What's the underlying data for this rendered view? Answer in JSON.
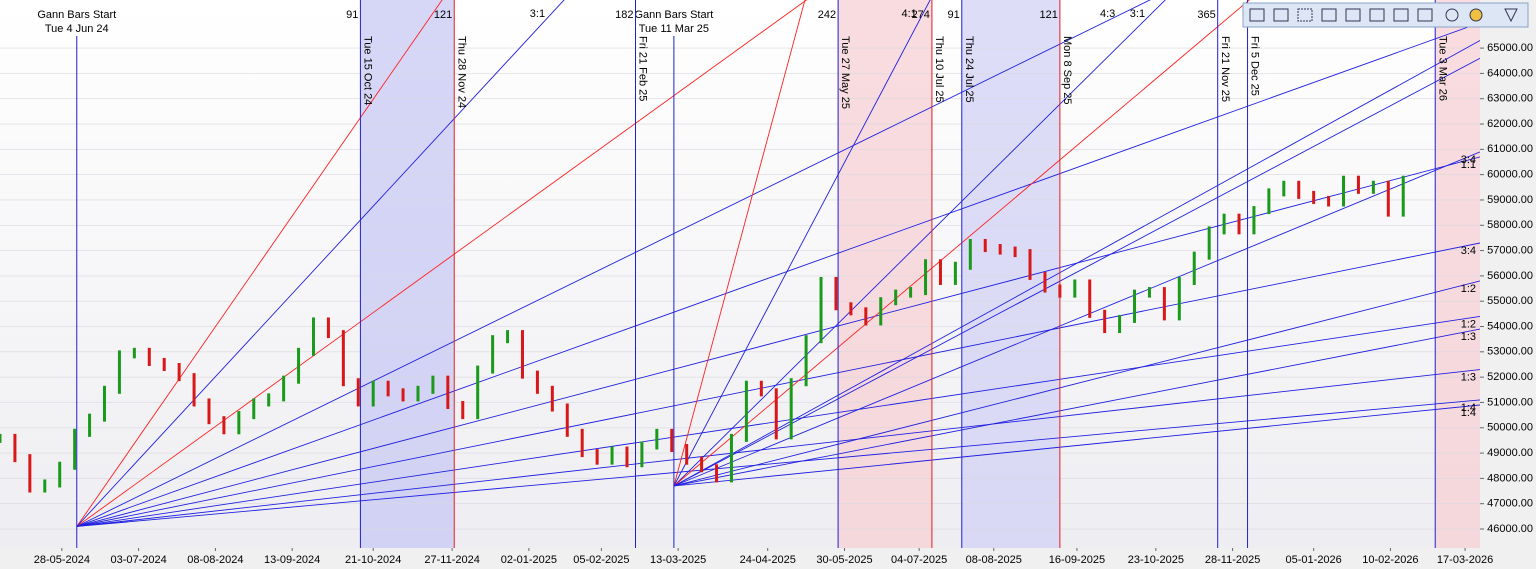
{
  "chart_data": {
    "type": "gann",
    "xlim": [
      "29-04-2024",
      "24-03-2026"
    ],
    "ylim": [
      45250,
      66900
    ],
    "xticks": [
      "28-05-2024",
      "03-07-2024",
      "08-08-2024",
      "13-09-2024",
      "21-10-2024",
      "27-11-2024",
      "02-01-2025",
      "05-02-2025",
      "13-03-2025",
      "24-04-2025",
      "30-05-2025",
      "04-07-2025",
      "08-08-2025",
      "16-09-2025",
      "23-10-2025",
      "28-11-2025",
      "05-01-2026",
      "10-02-2026",
      "17-03-2026"
    ],
    "yticks": [
      {
        "value": 46000,
        "label": "46000.00"
      },
      {
        "value": 47000,
        "label": "47000.00"
      },
      {
        "value": 48000,
        "label": "48000.00"
      },
      {
        "value": 49000,
        "label": "49000.00"
      },
      {
        "value": 50000,
        "label": "50000.00"
      },
      {
        "value": 51000,
        "label": "51000.00"
      },
      {
        "value": 52000,
        "label": "52000.00"
      },
      {
        "value": 53000,
        "label": "53000.00"
      },
      {
        "value": 54000,
        "label": "54000.00"
      },
      {
        "value": 55000,
        "label": "55000.00"
      },
      {
        "value": 56000,
        "label": "56000.00"
      },
      {
        "value": 57000,
        "label": "57000.00"
      },
      {
        "value": 58000,
        "label": "58000.00"
      },
      {
        "value": 59000,
        "label": "59000.00"
      },
      {
        "value": 60000,
        "label": "60000.00"
      },
      {
        "value": 61000,
        "label": "61000.00"
      },
      {
        "value": 62000,
        "label": "62000.00"
      },
      {
        "value": 63000,
        "label": "63000.00"
      },
      {
        "value": 64000,
        "label": "64000.00"
      },
      {
        "value": 65000,
        "label": "65000.00"
      }
    ],
    "bands": [
      {
        "from": "15-10-2024",
        "to": "28-11-2024",
        "color": "#c8c8f4"
      },
      {
        "from": "27-05-2025",
        "to": "10-07-2025",
        "color": "#f6d0d4"
      },
      {
        "from": "24-07-2025",
        "to": "08-09-2025",
        "color": "#d2d2f6"
      },
      {
        "from": "03-03-2026",
        "to": "24-03-2026",
        "color": "#f6d0d4"
      }
    ],
    "events": [
      {
        "date": "15-10-2024",
        "label": "Tue 15 Oct 24",
        "count": "91",
        "color": "#2020d0"
      },
      {
        "date": "28-11-2024",
        "label": "Thu 28 Nov 24",
        "count": "121",
        "color": "#e02020"
      },
      {
        "date": "21-02-2025",
        "label": "Fri 21 Feb 25",
        "count": "182",
        "color": "#2020d0"
      },
      {
        "date": "27-05-2025",
        "label": "Tue 27 May 25",
        "count": "242",
        "color": "#2020d0"
      },
      {
        "date": "10-07-2025",
        "label": "Thu 10 Jul 25",
        "count": "274",
        "color": "#e02020"
      },
      {
        "date": "24-07-2025",
        "label": "Thu 24 Jul 25",
        "count": "91",
        "color": "#2020d0"
      },
      {
        "date": "08-09-2025",
        "label": "Mon 8 Sep 25",
        "count": "121",
        "color": "#e02020"
      },
      {
        "date": "21-11-2025",
        "label": "Fri 21 Nov 25",
        "count": "365",
        "color": "#2020d0"
      },
      {
        "date": "05-12-2025",
        "label": "Fri 5 Dec 25",
        "color": "#2020d0"
      },
      {
        "date": "03-03-2026",
        "label": "Tue 3 Mar 26",
        "color": "#2020d0"
      }
    ],
    "gann_starts": [
      {
        "title": "Gann Bars Start",
        "date_label": "Tue 4 Jun 24",
        "date": "04-06-2024",
        "price": 46100,
        "lines": [
          {
            "end_price": 126000,
            "color": "#ff2020"
          },
          {
            "end_price": 106000,
            "color": "#2020e0",
            "label": "3:1"
          },
          {
            "end_price": 86100,
            "color": "#ff2020"
          },
          {
            "end_price": 73300,
            "color": "#2020e0",
            "label": "4:3"
          },
          {
            "end_price": 66000,
            "color": "#2020e0"
          },
          {
            "end_price": 60700,
            "color": "#2020e0",
            "label": "1:1"
          },
          {
            "end_price": 57300,
            "color": "#2020e0",
            "label": "3:4"
          },
          {
            "end_price": 54400,
            "color": "#2020e0",
            "label": "1:2"
          },
          {
            "end_price": 52300,
            "color": "#2020e0",
            "label": "1:3"
          },
          {
            "end_price": 51100,
            "color": "#2020e0",
            "label": "1:4"
          }
        ]
      },
      {
        "title": "Gann Bars Start",
        "date_label": "Tue 11 Mar 25",
        "date": "11-03-2025",
        "price": 47700,
        "lines": [
          {
            "end_price": 165800,
            "color": "#ff2020"
          },
          {
            "end_price": 108100,
            "color": "#2020e0",
            "label": "4:1"
          },
          {
            "end_price": 79200,
            "color": "#2020e0",
            "label": "3:1"
          },
          {
            "end_price": 74600,
            "color": "#ff2020"
          },
          {
            "end_price": 65300,
            "color": "#2020e0"
          },
          {
            "end_price": 64600,
            "color": "#2020e0"
          },
          {
            "end_price": 60900,
            "color": "#2020e0",
            "label": "3:4"
          },
          {
            "end_price": 55800,
            "color": "#2020e0",
            "label": "1:2"
          },
          {
            "end_price": 53900,
            "color": "#2020e0",
            "label": "1:3"
          },
          {
            "end_price": 50900,
            "color": "#2020e0",
            "label": "1:4"
          }
        ]
      }
    ],
    "x": [
      "29-04-2024",
      "06-05-2024",
      "13-05-2024",
      "20-05-2024",
      "27-05-2024",
      "03-06-2024",
      "10-06-2024",
      "17-06-2024",
      "24-06-2024",
      "01-07-2024",
      "08-07-2024",
      "15-07-2024",
      "22-07-2024",
      "29-07-2024",
      "05-08-2024",
      "12-08-2024",
      "19-08-2024",
      "26-08-2024",
      "02-09-2024",
      "09-09-2024",
      "16-09-2024",
      "23-09-2024",
      "30-09-2024",
      "07-10-2024",
      "14-10-2024",
      "21-10-2024",
      "28-10-2024",
      "04-11-2024",
      "11-11-2024",
      "18-11-2024",
      "25-11-2024",
      "02-12-2024",
      "09-12-2024",
      "16-12-2024",
      "23-12-2024",
      "30-12-2024",
      "06-01-2025",
      "13-01-2025",
      "20-01-2025",
      "27-01-2025",
      "03-02-2025",
      "10-02-2025",
      "17-02-2025",
      "24-02-2025",
      "03-03-2025",
      "10-03-2025",
      "17-03-2025",
      "24-03-2025",
      "31-03-2025",
      "07-04-2025",
      "14-04-2025",
      "21-04-2025",
      "28-04-2025",
      "05-05-2025",
      "12-05-2025",
      "19-05-2025",
      "26-05-2025",
      "02-06-2025",
      "09-06-2025",
      "16-06-2025",
      "23-06-2025",
      "30-06-2025",
      "07-07-2025",
      "14-07-2025",
      "21-07-2025",
      "28-07-2025",
      "04-08-2025",
      "11-08-2025",
      "18-08-2025",
      "25-08-2025",
      "01-09-2025",
      "08-09-2025",
      "15-09-2025",
      "22-09-2025",
      "29-09-2025",
      "06-10-2025",
      "13-10-2025",
      "20-10-2025",
      "27-10-2025",
      "03-11-2025",
      "10-11-2025",
      "17-11-2025",
      "24-11-2025",
      "01-12-2025",
      "08-12-2025",
      "15-12-2025",
      "22-12-2025",
      "29-12-2025",
      "05-01-2026",
      "12-01-2026",
      "19-01-2026",
      "26-01-2026",
      "02-02-2026",
      "09-02-2026",
      "16-02-2026"
    ],
    "values": [
      49600,
      48800,
      47600,
      47800,
      48500,
      49800,
      50400,
      51500,
      52900,
      53000,
      52600,
      52400,
      52000,
      51000,
      50300,
      49900,
      50500,
      51000,
      51200,
      51900,
      53000,
      54200,
      53700,
      51800,
      51000,
      51700,
      51400,
      51200,
      51500,
      51900,
      50900,
      50500,
      52300,
      53500,
      53700,
      52100,
      51500,
      50800,
      49800,
      49000,
      48700,
      49100,
      48600,
      49300,
      49800,
      49200,
      48700,
      48400,
      48000,
      49600,
      51700,
      51400,
      49700,
      51800,
      53500,
      55800,
      54800,
      54600,
      54200,
      55000,
      55300,
      55400,
      56500,
      55800,
      56400,
      57300,
      57100,
      57000,
      56900,
      56000,
      55500,
      55300,
      55700,
      54500,
      53900,
      54300,
      55300,
      55400,
      54400,
      55800,
      56800,
      57800,
      58300,
      57800,
      58600,
      59300,
      59600,
      59200,
      59000,
      58900,
      59800,
      59400,
      59600,
      58500,
      59800
    ]
  }
}
